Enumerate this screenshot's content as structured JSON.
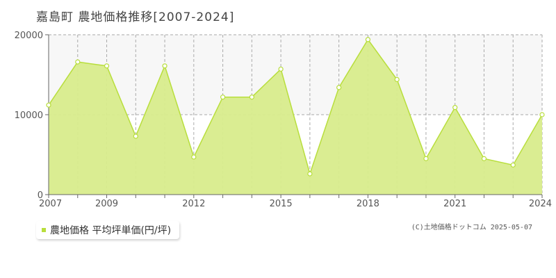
{
  "title": "嘉島町 農地価格推移[2007-2024]",
  "legend": {
    "label": "農地価格 平均坪単価(円/坪)"
  },
  "credit": "(C)土地価格ドットコム 2025-05-07",
  "colors": {
    "fill": "#d8ec8c",
    "line": "#b8de3c",
    "marker": "#ffffff",
    "grid": "#aaaaaa",
    "axis": "#666666"
  },
  "chart_data": {
    "type": "area",
    "title": "嘉島町 農地価格推移[2007-2024]",
    "xlabel": "",
    "ylabel": "",
    "x": [
      2007,
      2008,
      2009,
      2010,
      2011,
      2012,
      2013,
      2014,
      2015,
      2016,
      2017,
      2018,
      2019,
      2020,
      2021,
      2022,
      2023,
      2024
    ],
    "series": [
      {
        "name": "農地価格 平均坪単価(円/坪)",
        "values": [
          11200,
          16600,
          16100,
          7300,
          16100,
          4700,
          12200,
          12200,
          15700,
          2600,
          13400,
          19400,
          14400,
          4500,
          10900,
          4500,
          3700,
          10000
        ]
      }
    ],
    "xlim": [
      2007,
      2024
    ],
    "ylim": [
      0,
      20000
    ],
    "yticks": [
      0,
      10000,
      20000
    ],
    "xtick_labels": [
      2007,
      2009,
      2012,
      2015,
      2018,
      2021,
      2024
    ],
    "grid": true,
    "legend_position": "bottom-left"
  }
}
